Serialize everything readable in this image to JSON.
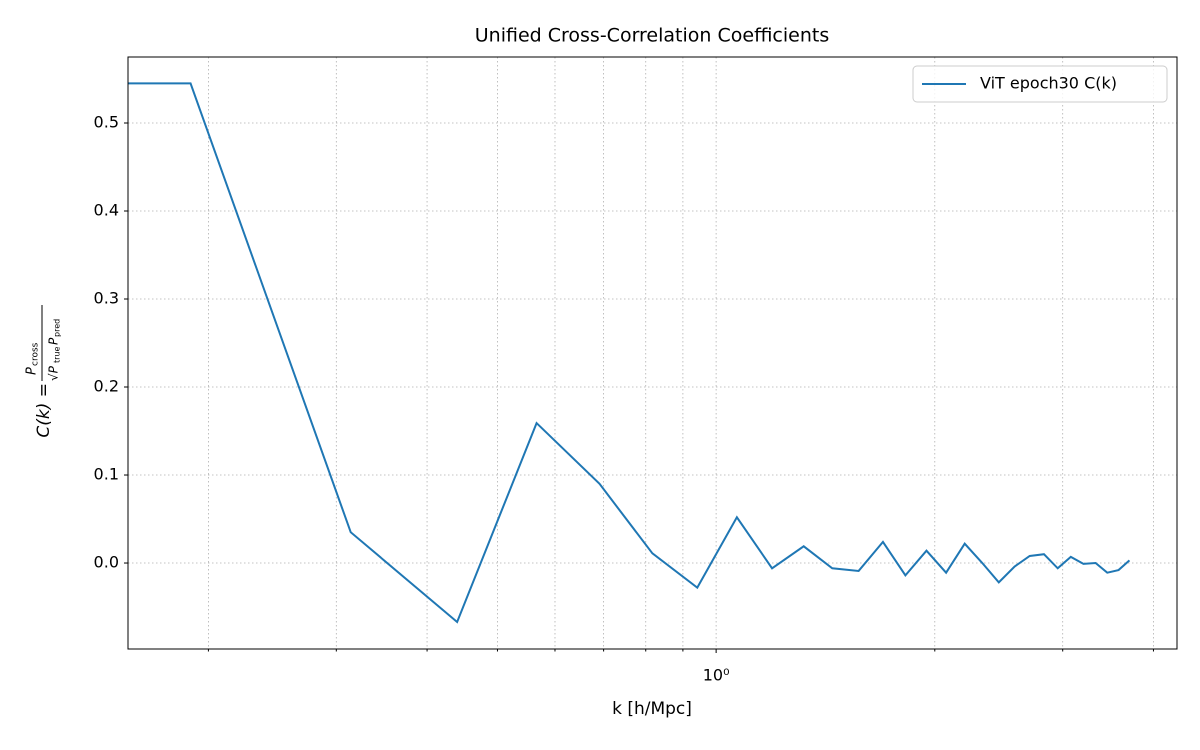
{
  "chart_data": {
    "type": "line",
    "title": "Unified Cross-Correlation Coefficients",
    "xlabel": "k [h/Mpc]",
    "ylabel": {
      "lhs": "C(k) =",
      "num": "P",
      "num_sub": "cross",
      "den": "√P",
      "den_sub1": "true",
      "den_mid": "P",
      "den_sub2": "pred"
    },
    "xscale": "log",
    "x": [
      0.063,
      0.189,
      0.314,
      0.44,
      0.566,
      0.691,
      0.817,
      0.942,
      1.068,
      1.194,
      1.32,
      1.445,
      1.571,
      1.697,
      1.822,
      1.948,
      2.073,
      2.199,
      2.325,
      2.45,
      2.576,
      2.702,
      2.827,
      2.953,
      3.078,
      3.204,
      3.33,
      3.455,
      3.581,
      3.707
    ],
    "series": [
      {
        "name": "ViT epoch30 C(k)",
        "color": "#1f77b4",
        "values": [
          0.545,
          0.545,
          0.035,
          -0.067,
          0.159,
          0.09,
          0.011,
          -0.028,
          0.052,
          -0.006,
          0.019,
          -0.006,
          -0.009,
          0.024,
          -0.014,
          0.014,
          -0.011,
          0.022,
          0.0,
          -0.022,
          -0.004,
          0.008,
          0.01,
          -0.006,
          0.007,
          -0.001,
          0.0,
          -0.011,
          -0.008,
          0.003
        ]
      }
    ],
    "xlim": [
      0.155,
      4.31
    ],
    "ylim": [
      -0.0977,
      0.575
    ],
    "xticks": [
      {
        "value": 1,
        "label": "10⁰"
      }
    ],
    "xminorticks": [
      0.2,
      0.3,
      0.4,
      0.5,
      0.6,
      0.7,
      0.8,
      0.9,
      2,
      3,
      4
    ],
    "yticks": [
      {
        "value": 0,
        "label": "0.0"
      },
      0.1,
      0.2,
      0.3,
      0.4,
      0.5
    ],
    "grid": true,
    "legend": "upper right"
  }
}
